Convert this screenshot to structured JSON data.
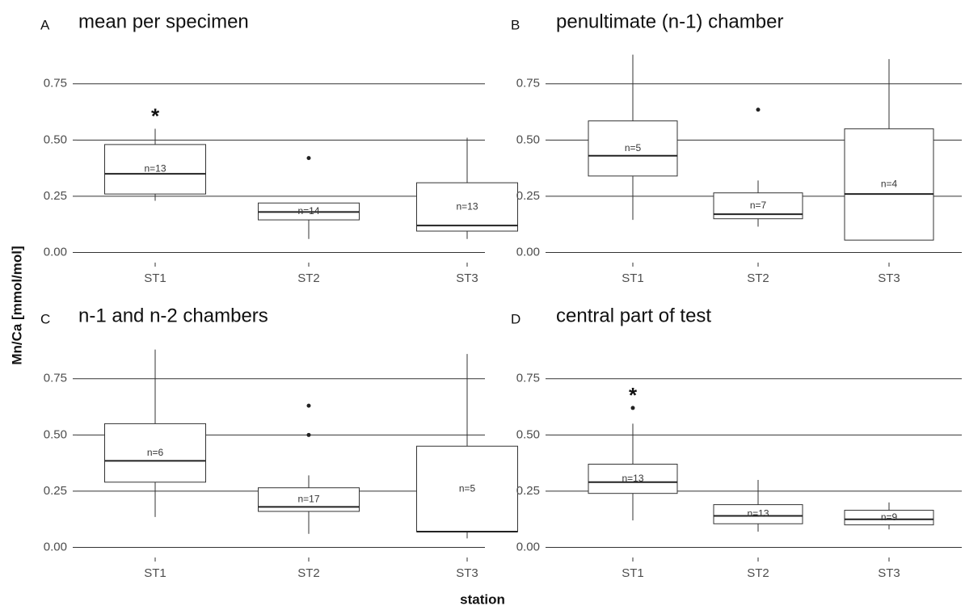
{
  "ylabel": "Mn/Ca [mmol/mol]",
  "xlabel": "station",
  "chart_data": [
    {
      "type": "box",
      "label": "A",
      "title": "mean per specimen",
      "categories": [
        "ST1",
        "ST2",
        "ST3"
      ],
      "boxes": [
        {
          "whislo": 0.23,
          "q1": 0.26,
          "med": 0.35,
          "q3": 0.48,
          "whishi": 0.55,
          "outliers": []
        },
        {
          "whislo": 0.06,
          "q1": 0.145,
          "med": 0.18,
          "q3": 0.22,
          "whishi": 0.22,
          "outliers": [
            0.42
          ]
        },
        {
          "whislo": 0.06,
          "q1": 0.095,
          "med": 0.12,
          "q3": 0.31,
          "whishi": 0.51,
          "outliers": []
        }
      ],
      "n_labels": [
        "n=13",
        "n=14",
        "n=13"
      ],
      "annotations": [
        {
          "text": "*",
          "category": "ST1"
        }
      ],
      "ylim": [
        -0.045,
        0.9
      ],
      "yticks": [
        {
          "value": 0,
          "label": "0.00"
        },
        {
          "value": 0.25,
          "label": "0.25"
        },
        {
          "value": 0.5,
          "label": "0.50"
        },
        {
          "value": 0.75,
          "label": "0.75"
        }
      ],
      "grid": true
    },
    {
      "type": "box",
      "label": "B",
      "title": "penultimate (n-1) chamber",
      "categories": [
        "ST1",
        "ST2",
        "ST3"
      ],
      "boxes": [
        {
          "whislo": 0.145,
          "q1": 0.34,
          "med": 0.43,
          "q3": 0.585,
          "whishi": 0.88,
          "outliers": []
        },
        {
          "whislo": 0.115,
          "q1": 0.15,
          "med": 0.17,
          "q3": 0.265,
          "whishi": 0.32,
          "outliers": [
            0.635
          ]
        },
        {
          "whislo": 0.055,
          "q1": 0.055,
          "med": 0.26,
          "q3": 0.55,
          "whishi": 0.86,
          "outliers": []
        }
      ],
      "n_labels": [
        "n=5",
        "n=7",
        "n=4"
      ],
      "annotations": [],
      "ylim": [
        -0.045,
        0.9
      ],
      "yticks": [
        {
          "value": 0,
          "label": "0.00"
        },
        {
          "value": 0.25,
          "label": "0.25"
        },
        {
          "value": 0.5,
          "label": "0.50"
        },
        {
          "value": 0.75,
          "label": "0.75"
        }
      ],
      "grid": true
    },
    {
      "type": "box",
      "label": "C",
      "title": "n-1 and n-2 chambers",
      "categories": [
        "ST1",
        "ST2",
        "ST3"
      ],
      "boxes": [
        {
          "whislo": 0.135,
          "q1": 0.29,
          "med": 0.385,
          "q3": 0.55,
          "whishi": 0.88,
          "outliers": []
        },
        {
          "whislo": 0.06,
          "q1": 0.16,
          "med": 0.18,
          "q3": 0.265,
          "whishi": 0.32,
          "outliers": [
            0.63,
            0.5
          ]
        },
        {
          "whislo": 0.04,
          "q1": 0.07,
          "med": 0.07,
          "q3": 0.45,
          "whishi": 0.86,
          "outliers": []
        }
      ],
      "n_labels": [
        "n=6",
        "n=17",
        "n=5"
      ],
      "annotations": [],
      "ylim": [
        -0.045,
        0.9
      ],
      "yticks": [
        {
          "value": 0,
          "label": "0.00"
        },
        {
          "value": 0.25,
          "label": "0.25"
        },
        {
          "value": 0.5,
          "label": "0.50"
        },
        {
          "value": 0.75,
          "label": "0.75"
        }
      ],
      "grid": true
    },
    {
      "type": "box",
      "label": "D",
      "title": "central part of test",
      "categories": [
        "ST1",
        "ST2",
        "ST3"
      ],
      "boxes": [
        {
          "whislo": 0.12,
          "q1": 0.24,
          "med": 0.29,
          "q3": 0.37,
          "whishi": 0.55,
          "outliers": [
            0.62
          ]
        },
        {
          "whislo": 0.07,
          "q1": 0.105,
          "med": 0.14,
          "q3": 0.19,
          "whishi": 0.3,
          "outliers": []
        },
        {
          "whislo": 0.08,
          "q1": 0.1,
          "med": 0.125,
          "q3": 0.165,
          "whishi": 0.2,
          "outliers": []
        }
      ],
      "n_labels": [
        "n=13",
        "n=13",
        "n=9"
      ],
      "annotations": [
        {
          "text": "*",
          "category": "ST1"
        }
      ],
      "ylim": [
        -0.045,
        0.9
      ],
      "yticks": [
        {
          "value": 0,
          "label": "0.00"
        },
        {
          "value": 0.25,
          "label": "0.25"
        },
        {
          "value": 0.5,
          "label": "0.50"
        },
        {
          "value": 0.75,
          "label": "0.75"
        }
      ],
      "grid": true
    }
  ]
}
